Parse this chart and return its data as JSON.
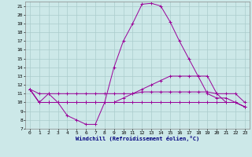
{
  "xlabel": "Windchill (Refroidissement éolien,°C)",
  "background_color": "#cce8e8",
  "grid_color": "#aacccc",
  "line_color": "#990099",
  "xlim": [
    -0.5,
    23.5
  ],
  "ylim": [
    7,
    21.5
  ],
  "yticks": [
    7,
    8,
    9,
    10,
    11,
    12,
    13,
    14,
    15,
    16,
    17,
    18,
    19,
    20,
    21
  ],
  "xticks": [
    0,
    1,
    2,
    3,
    4,
    5,
    6,
    7,
    8,
    9,
    10,
    11,
    12,
    13,
    14,
    15,
    16,
    17,
    18,
    19,
    20,
    21,
    22,
    23
  ],
  "series": [
    {
      "x": [
        0,
        1,
        2,
        3,
        4,
        5,
        6,
        7,
        8,
        9,
        10,
        11,
        12,
        13,
        14,
        15,
        16,
        17,
        18,
        19,
        20,
        21,
        22,
        23
      ],
      "y": [
        11.5,
        10.0,
        11.0,
        10.0,
        8.5,
        8.0,
        7.5,
        7.5,
        10.0,
        14.0,
        17.0,
        19.0,
        21.2,
        21.3,
        21.0,
        19.2,
        17.0,
        15.0,
        13.0,
        11.0,
        10.5,
        10.5,
        10.0,
        9.5
      ]
    },
    {
      "x": [
        0,
        1,
        2,
        3,
        4,
        5,
        6,
        7,
        8,
        9,
        10,
        11,
        12,
        13,
        14,
        15,
        16,
        17,
        18,
        19,
        20,
        21,
        22,
        23
      ],
      "y": [
        11.5,
        11.0,
        11.0,
        11.0,
        11.0,
        11.0,
        11.0,
        11.0,
        11.0,
        11.0,
        11.0,
        11.0,
        11.2,
        11.2,
        11.2,
        11.2,
        11.2,
        11.2,
        11.2,
        11.2,
        11.0,
        11.0,
        11.0,
        10.0
      ]
    },
    {
      "x": [
        0,
        1,
        2,
        3,
        4,
        5,
        6,
        7,
        8,
        9,
        10,
        11,
        12,
        13,
        14,
        15,
        16,
        17,
        18,
        19,
        20,
        21,
        22,
        23
      ],
      "y": [
        11.5,
        10.0,
        10.0,
        10.0,
        10.0,
        10.0,
        10.0,
        10.0,
        10.0,
        10.0,
        10.5,
        11.0,
        11.5,
        12.0,
        12.5,
        13.0,
        13.0,
        13.0,
        13.0,
        13.0,
        11.0,
        10.0,
        10.0,
        9.5
      ]
    },
    {
      "x": [
        0,
        1,
        2,
        3,
        4,
        5,
        6,
        7,
        8,
        9,
        10,
        11,
        12,
        13,
        14,
        15,
        16,
        17,
        18,
        19,
        20,
        21,
        22,
        23
      ],
      "y": [
        11.5,
        10.0,
        10.0,
        10.0,
        10.0,
        10.0,
        10.0,
        10.0,
        10.0,
        10.0,
        10.0,
        10.0,
        10.0,
        10.0,
        10.0,
        10.0,
        10.0,
        10.0,
        10.0,
        10.0,
        10.0,
        10.0,
        10.0,
        9.5
      ]
    }
  ]
}
